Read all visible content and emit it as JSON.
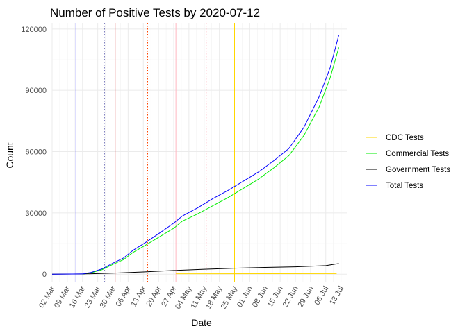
{
  "chart_data": {
    "type": "line",
    "title": "Number of Positive Tests by  2020-07-12",
    "xlabel": "Date",
    "ylabel": "Count",
    "ylim": [
      -4000,
      123000
    ],
    "xlim": [
      "2020-03-02",
      "2020-07-16"
    ],
    "x_tick_labels": [
      "02 Mar",
      "09 Mar",
      "16 Mar",
      "23 Mar",
      "30 Mar",
      "06 Apr",
      "13 Apr",
      "20 Apr",
      "27 Apr",
      "04 May",
      "11 May",
      "18 May",
      "25 May",
      "01 Jun",
      "08 Jun",
      "15 Jun",
      "22 Jun",
      "29 Jun",
      "06 Jul",
      "13 Jul"
    ],
    "x_ticks": [
      "2020-03-02",
      "2020-03-09",
      "2020-03-16",
      "2020-03-23",
      "2020-03-30",
      "2020-04-06",
      "2020-04-13",
      "2020-04-20",
      "2020-04-27",
      "2020-05-04",
      "2020-05-11",
      "2020-05-18",
      "2020-05-25",
      "2020-06-01",
      "2020-06-08",
      "2020-06-15",
      "2020-06-22",
      "2020-06-29",
      "2020-07-06",
      "2020-07-13"
    ],
    "y_ticks": [
      0,
      30000,
      60000,
      90000,
      120000
    ],
    "y_tick_labels": [
      "0",
      "30000",
      "60000",
      "90000",
      "120000"
    ],
    "grid": true,
    "legend_position": "right",
    "vlines": [
      {
        "date": "2020-03-13",
        "color": "#0000ff",
        "style": "solid"
      },
      {
        "date": "2020-03-26",
        "color": "#000080",
        "style": "dotted"
      },
      {
        "date": "2020-03-31",
        "color": "#cc0000",
        "style": "solid"
      },
      {
        "date": "2020-04-15",
        "color": "#ff4500",
        "style": "dotted"
      },
      {
        "date": "2020-04-28",
        "color": "#ffb6c1",
        "style": "solid"
      },
      {
        "date": "2020-05-12",
        "color": "#ffb6c1",
        "style": "dotted"
      },
      {
        "date": "2020-05-25",
        "color": "#ffd700",
        "style": "solid"
      }
    ],
    "series": [
      {
        "name": "CDC Tests",
        "color": "#ffd700",
        "points": [
          [
            "2020-04-28",
            200
          ],
          [
            "2020-05-15",
            220
          ],
          [
            "2020-06-10",
            250
          ],
          [
            "2020-07-11",
            300
          ]
        ]
      },
      {
        "name": "Commercial Tests",
        "color": "#00ee00",
        "points": [
          [
            "2020-03-16",
            0
          ],
          [
            "2020-03-20",
            700
          ],
          [
            "2020-03-25",
            2200
          ],
          [
            "2020-03-30",
            4800
          ],
          [
            "2020-04-04",
            7200
          ],
          [
            "2020-04-08",
            10500
          ],
          [
            "2020-04-14",
            14200
          ],
          [
            "2020-04-20",
            18000
          ],
          [
            "2020-04-27",
            22500
          ],
          [
            "2020-05-01",
            26000
          ],
          [
            "2020-05-08",
            29500
          ],
          [
            "2020-05-15",
            33500
          ],
          [
            "2020-05-22",
            37500
          ],
          [
            "2020-05-29",
            42000
          ],
          [
            "2020-06-05",
            46500
          ],
          [
            "2020-06-12",
            52000
          ],
          [
            "2020-06-19",
            58000
          ],
          [
            "2020-06-26",
            68000
          ],
          [
            "2020-07-03",
            82000
          ],
          [
            "2020-07-08",
            96000
          ],
          [
            "2020-07-12",
            111000
          ]
        ]
      },
      {
        "name": "Government Tests",
        "color": "#000000",
        "points": [
          [
            "2020-03-02",
            0
          ],
          [
            "2020-03-16",
            100
          ],
          [
            "2020-03-30",
            500
          ],
          [
            "2020-04-13",
            1100
          ],
          [
            "2020-04-27",
            1800
          ],
          [
            "2020-05-11",
            2400
          ],
          [
            "2020-05-25",
            2900
          ],
          [
            "2020-06-08",
            3300
          ],
          [
            "2020-06-22",
            3600
          ],
          [
            "2020-07-06",
            4200
          ],
          [
            "2020-07-12",
            5200
          ]
        ]
      },
      {
        "name": "Total Tests",
        "color": "#0000ff",
        "points": [
          [
            "2020-03-02",
            0
          ],
          [
            "2020-03-16",
            100
          ],
          [
            "2020-03-20",
            900
          ],
          [
            "2020-03-25",
            2600
          ],
          [
            "2020-03-30",
            5400
          ],
          [
            "2020-04-04",
            8000
          ],
          [
            "2020-04-08",
            11500
          ],
          [
            "2020-04-14",
            15500
          ],
          [
            "2020-04-20",
            19800
          ],
          [
            "2020-04-27",
            25000
          ],
          [
            "2020-05-01",
            28500
          ],
          [
            "2020-05-08",
            32500
          ],
          [
            "2020-05-15",
            37000
          ],
          [
            "2020-05-22",
            41000
          ],
          [
            "2020-05-29",
            45500
          ],
          [
            "2020-06-05",
            50000
          ],
          [
            "2020-06-12",
            55500
          ],
          [
            "2020-06-19",
            61500
          ],
          [
            "2020-06-26",
            72000
          ],
          [
            "2020-07-03",
            87000
          ],
          [
            "2020-07-08",
            101000
          ],
          [
            "2020-07-12",
            117000
          ]
        ]
      }
    ]
  }
}
